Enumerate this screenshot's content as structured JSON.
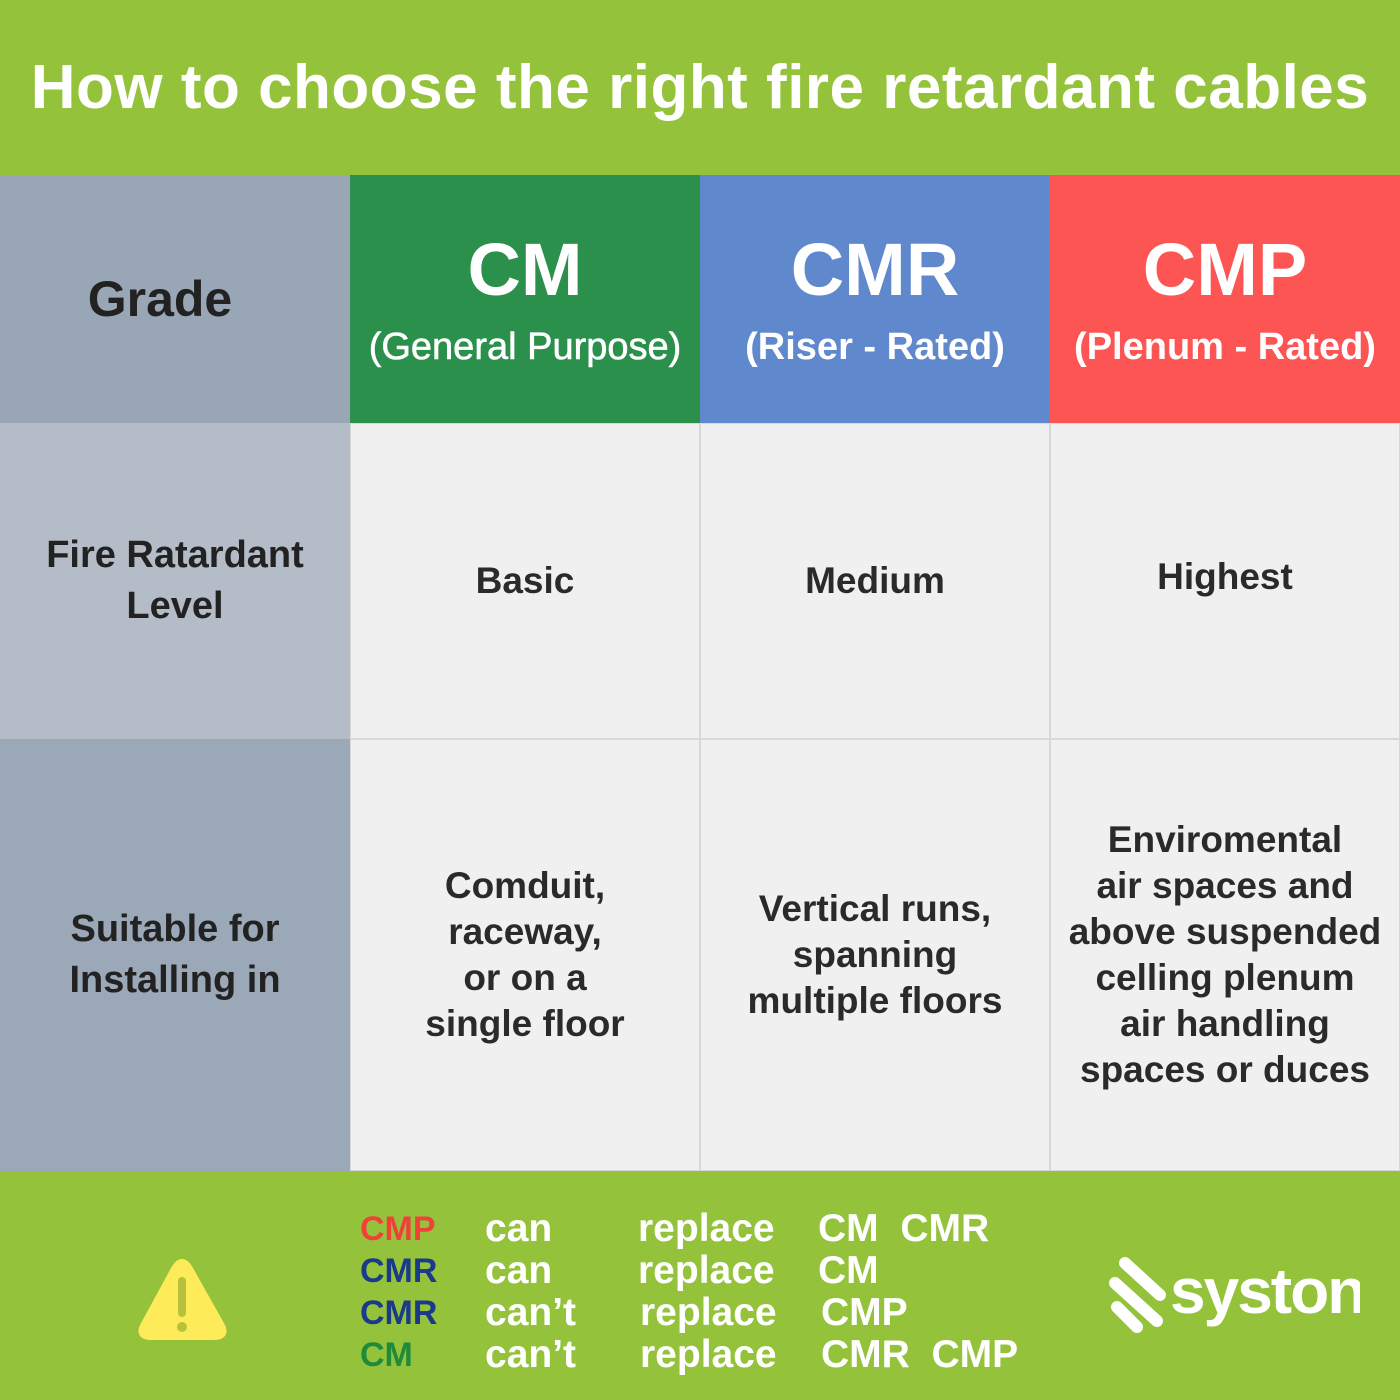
{
  "title": "How to choose the right fire retardant cables",
  "table": {
    "row_labels": [
      "Grade",
      "Fire Ratardant Level",
      "Suitable for Installing in"
    ],
    "grades": [
      {
        "code": "CM",
        "subtitle": "(General Purpose)",
        "color": "#2a904c",
        "level": "Basic",
        "usage": [
          "Comduit,",
          "raceway,",
          "or on a",
          "single floor"
        ]
      },
      {
        "code": "CMR",
        "subtitle": "(Riser - Rated)",
        "color": "#6088cc",
        "level": "Medium",
        "usage": [
          "Vertical runs,",
          "spanning",
          "multiple floors"
        ]
      },
      {
        "code": "CMP",
        "subtitle": "(Plenum - Rated)",
        "color": "#fd5553",
        "level": "Highest",
        "usage": [
          "Enviromental",
          "air spaces and",
          "above suspended",
          "celling plenum",
          "air handling",
          "spaces or duces"
        ]
      }
    ]
  },
  "footer": {
    "icon": "warning-icon",
    "rules": [
      {
        "subject": "CMP",
        "subject_color": "#f0403a",
        "verb": "can",
        "action": "replace",
        "targets": "CM  CMR"
      },
      {
        "subject": "CMR",
        "subject_color": "#1a3a8a",
        "verb": "can",
        "action": "replace",
        "targets": "CM"
      },
      {
        "subject": "CMR",
        "subject_color": "#1a3a8a",
        "verb": "can’t",
        "action": "replace",
        "targets": "CMP"
      },
      {
        "subject": "CM",
        "subject_color": "#1e8a3a",
        "verb": "can’t",
        "action": "replace",
        "targets": "CMR  CMP"
      }
    ],
    "logo": "syston"
  }
}
